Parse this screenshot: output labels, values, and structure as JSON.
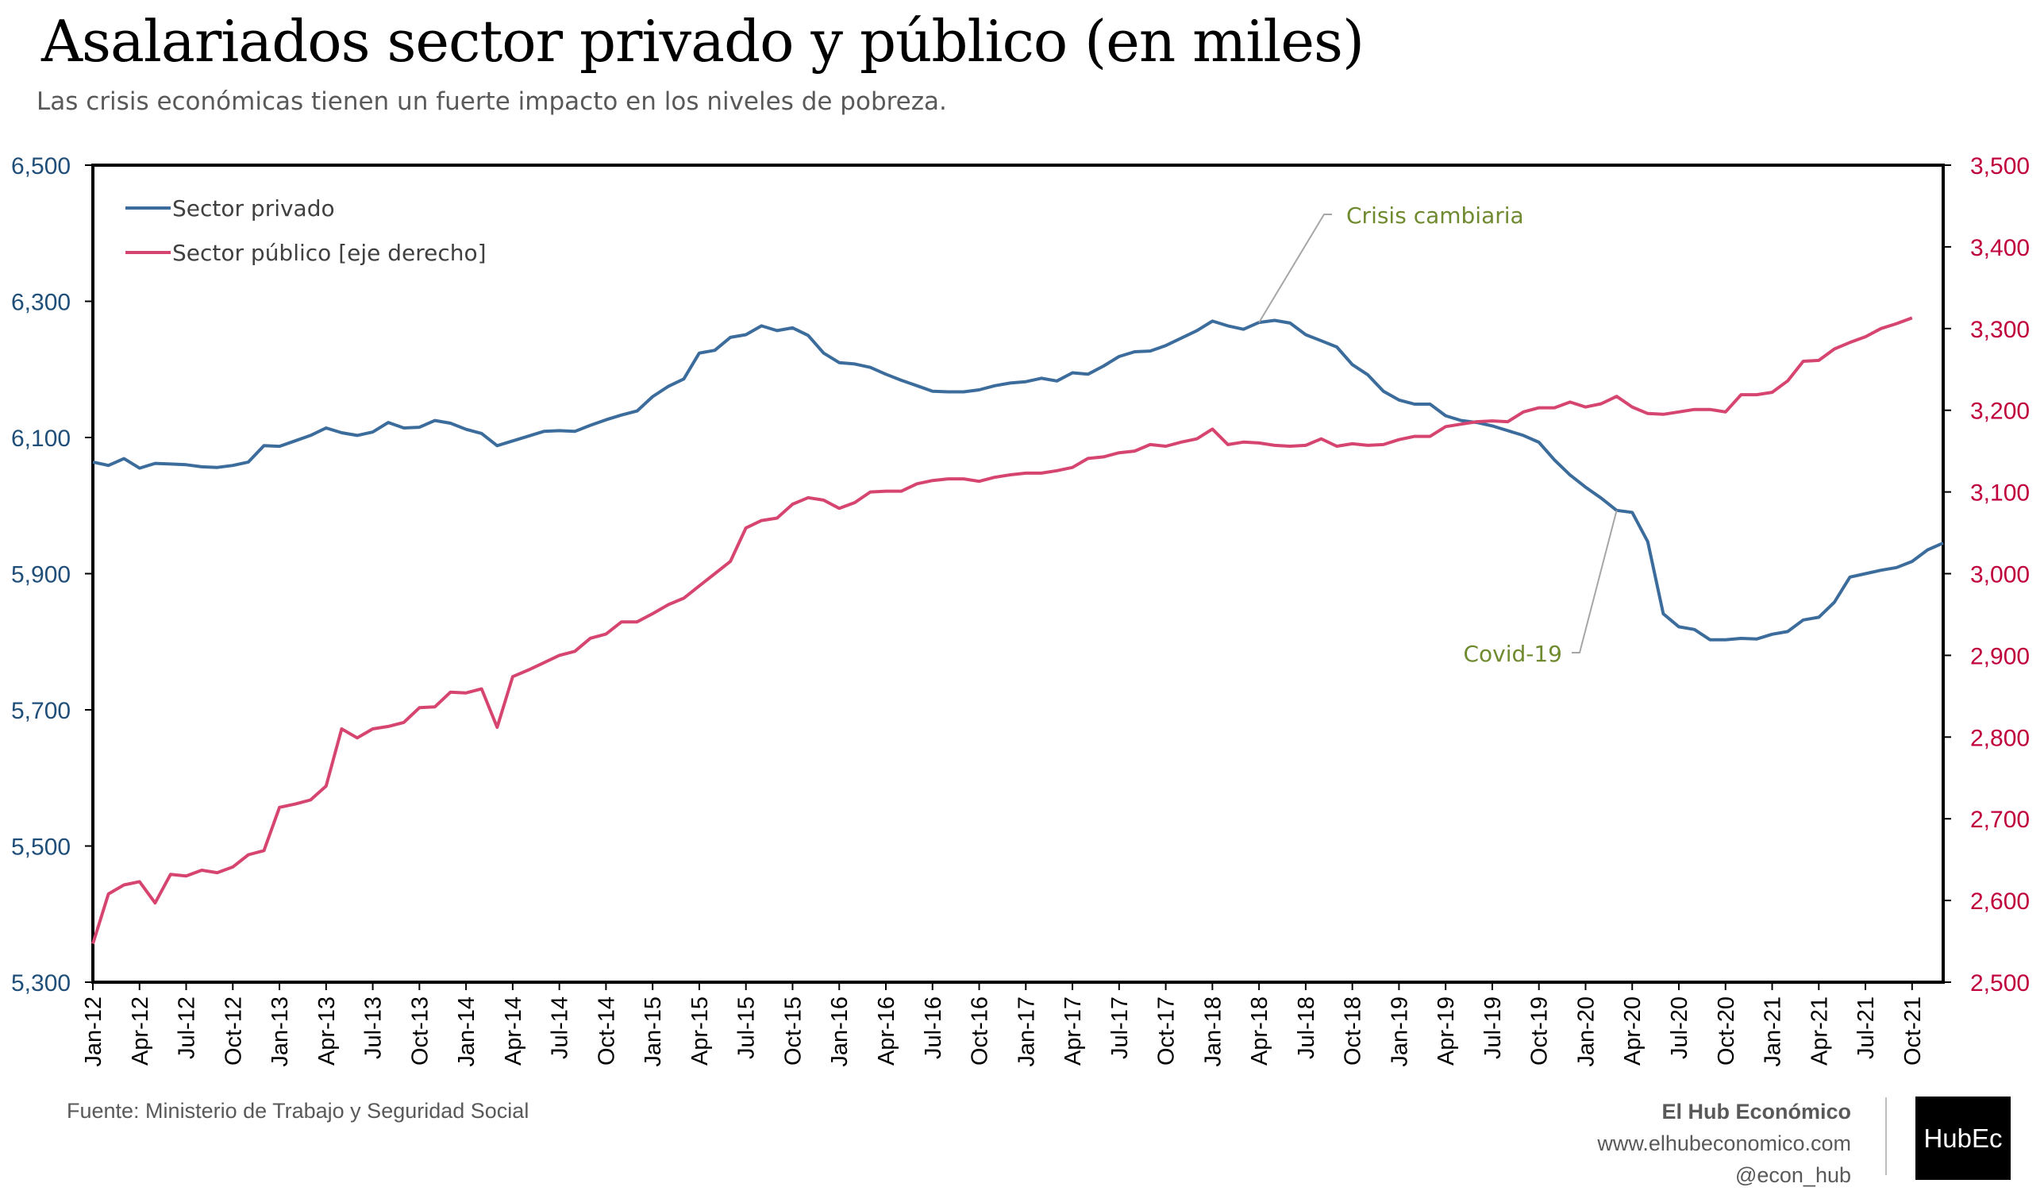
{
  "title": "Asalariados sector privado y público (en miles)",
  "subtitle": "Las crisis económicas tienen un fuerte impacto en los niveles de pobreza.",
  "footer": {
    "source": "Fuente: Ministerio de Trabajo y Seguridad Social",
    "brand_name": "El Hub Económico",
    "brand_url": "www.elhubeconomico.com",
    "brand_handle": "@econ_hub",
    "logo_text": "HubEc"
  },
  "colors": {
    "private": "#3b6c9c",
    "public": "#d6456f",
    "left_axis": "#1f4e79",
    "right_axis": "#c0003c",
    "annotation": "#6f8a2f",
    "leader": "#a6a6a6"
  },
  "chart_data": {
    "type": "line",
    "title": "Asalariados sector privado y público (en miles)",
    "grid": false,
    "legend_position": "top-left",
    "x_start": "2012-01",
    "x_tick_labels": [
      "Jan-12",
      "Apr-12",
      "Jul-12",
      "Oct-12",
      "Jan-13",
      "Apr-13",
      "Jul-13",
      "Oct-13",
      "Jan-14",
      "Apr-14",
      "Jul-14",
      "Oct-14",
      "Jan-15",
      "Apr-15",
      "Jul-15",
      "Oct-15",
      "Jan-16",
      "Apr-16",
      "Jul-16",
      "Oct-16",
      "Jan-17",
      "Apr-17",
      "Jul-17",
      "Oct-17",
      "Jan-18",
      "Apr-18",
      "Jul-18",
      "Oct-18",
      "Jan-19",
      "Apr-19",
      "Jul-19",
      "Oct-19",
      "Jan-20",
      "Apr-20",
      "Jul-20",
      "Oct-20",
      "Jan-21",
      "Apr-21",
      "Jul-21",
      "Oct-21"
    ],
    "y_left": {
      "range": [
        5300,
        6500
      ],
      "ticks": [
        "5,300",
        "5,500",
        "5,700",
        "5,900",
        "6,100",
        "6,300",
        "6,500"
      ]
    },
    "y_right": {
      "range": [
        2500,
        3500
      ],
      "ticks": [
        "2,500",
        "2,600",
        "2,700",
        "2,800",
        "2,900",
        "3,000",
        "3,100",
        "3,200",
        "3,300",
        "3,400",
        "3,500"
      ]
    },
    "series": [
      {
        "name": "Sector privado",
        "axis": "left",
        "values": [
          6064,
          6059,
          6069,
          6055,
          6062,
          6061,
          6060,
          6057,
          6056,
          6059,
          6064,
          6088,
          6087,
          6095,
          6103,
          6114,
          6107,
          6103,
          6108,
          6122,
          6114,
          6115,
          6125,
          6121,
          6112,
          6106,
          6088,
          6095,
          6102,
          6109,
          6110,
          6109,
          6118,
          6126,
          6133,
          6139,
          6160,
          6175,
          6186,
          6224,
          6228,
          6247,
          6251,
          6264,
          6257,
          6261,
          6250,
          6224,
          6210,
          6208,
          6203,
          6193,
          6184,
          6176,
          6168,
          6167,
          6167,
          6170,
          6176,
          6180,
          6182,
          6187,
          6183,
          6195,
          6193,
          6205,
          6219,
          6226,
          6227,
          6235,
          6246,
          6257,
          6271,
          6264,
          6259,
          6269,
          6272,
          6268,
          6251,
          6242,
          6233,
          6207,
          6192,
          6168,
          6155,
          6149,
          6149,
          6132,
          6125,
          6122,
          6117,
          6110,
          6103,
          6093,
          6067,
          6045,
          6027,
          6011,
          5993,
          5990,
          5947,
          5841,
          5822,
          5818,
          5803,
          5803,
          5805,
          5804,
          5811,
          5815,
          5832,
          5836,
          5858,
          5895,
          5900,
          5905,
          5909,
          5918,
          5935,
          5945
        ]
      },
      {
        "name": "Sector público [eje derecho]",
        "axis": "right",
        "values": [
          2547,
          2608,
          2619,
          2623,
          2597,
          2632,
          2630,
          2637,
          2634,
          2641,
          2656,
          2661,
          2714,
          2718,
          2723,
          2740,
          2810,
          2799,
          2810,
          2813,
          2818,
          2836,
          2837,
          2855,
          2854,
          2859,
          2812,
          2874,
          2882,
          2891,
          2900,
          2905,
          2921,
          2926,
          2941,
          2941,
          2951,
          2962,
          2970,
          2985,
          3000,
          3015,
          3056,
          3065,
          3068,
          3085,
          3093,
          3090,
          3080,
          3087,
          3100,
          3101,
          3101,
          3110,
          3114,
          3116,
          3116,
          3113,
          3118,
          3121,
          3123,
          3123,
          3126,
          3130,
          3141,
          3143,
          3148,
          3150,
          3158,
          3156,
          3161,
          3165,
          3177,
          3158,
          3161,
          3160,
          3157,
          3156,
          3157,
          3165,
          3156,
          3159,
          3157,
          3158,
          3164,
          3168,
          3168,
          3180,
          3183,
          3186,
          3187,
          3186,
          3198,
          3203,
          3203,
          3210,
          3204,
          3208,
          3217,
          3204,
          3196,
          3195,
          3198,
          3201,
          3201,
          3198,
          3219,
          3219,
          3222,
          3236,
          3260,
          3261,
          3275,
          3283,
          3290,
          3300,
          3306,
          3313
        ]
      }
    ],
    "annotations": [
      {
        "text": "Crisis cambiaria",
        "points_to": "Apr-18",
        "series": "Sector privado"
      },
      {
        "text": "Covid-19",
        "points_to": "Mar-20",
        "series": "Sector privado"
      }
    ]
  }
}
